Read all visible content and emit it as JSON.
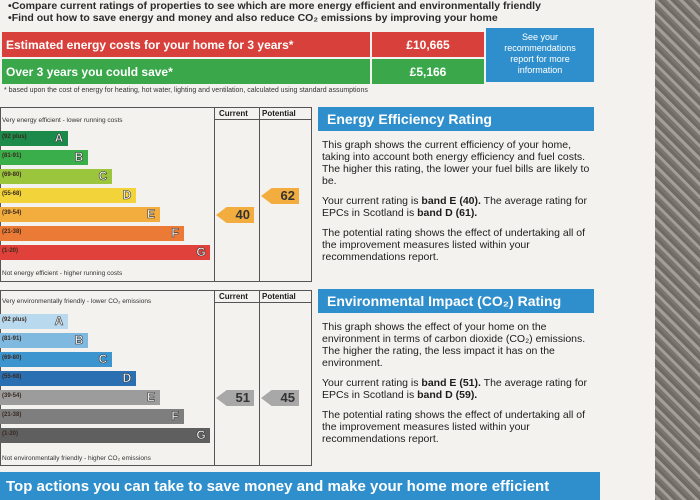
{
  "intro": {
    "line1": "Compare current ratings of properties to see which are more energy efficient and environmentally friendly",
    "line2": "Find out how to save energy and money and also reduce CO₂ emissions by improving your home"
  },
  "costs": {
    "estimated_label": "Estimated energy costs for your home for 3 years*",
    "estimated_value": "£10,665",
    "save_label": "Over 3 years you could save*",
    "save_value": "£5,166",
    "see_box": "See your recommendations report for more information",
    "basis": "* based upon the cost of energy for heating, hot water, lighting and ventilation, calculated using standard assumptions"
  },
  "eer_graph": {
    "top_text": "Very energy efficient - lower running costs",
    "bottom_text": "Not energy efficient - higher running costs",
    "col_current": "Current",
    "col_potential": "Potential",
    "current": "40",
    "potential": "62",
    "current_value": 40,
    "potential_value": 62,
    "bands": [
      {
        "range": "(92 plus)",
        "letter": "A",
        "color": "#1c8a4a"
      },
      {
        "range": "(81-91)",
        "letter": "B",
        "color": "#3aae4a"
      },
      {
        "range": "(69-80)",
        "letter": "C",
        "color": "#9bc53d"
      },
      {
        "range": "(55-68)",
        "letter": "D",
        "color": "#f2d43a"
      },
      {
        "range": "(39-54)",
        "letter": "E",
        "color": "#f3ad3e"
      },
      {
        "range": "(21-38)",
        "letter": "F",
        "color": "#ec7a37"
      },
      {
        "range": "(1-20)",
        "letter": "G",
        "color": "#e0413a"
      }
    ]
  },
  "eir_graph": {
    "top_text": "Very environmentally friendly - lower CO₂ emissions",
    "bottom_text": "Not environmentally friendly - higher CO₂ emissions",
    "col_current": "Current",
    "col_potential": "Potential",
    "current": "51",
    "potential": "45",
    "current_value": 51,
    "potential_value": 45,
    "bands": [
      {
        "range": "(92 plus)",
        "letter": "A",
        "color": "#b9d9ef"
      },
      {
        "range": "(81-91)",
        "letter": "B",
        "color": "#7fb9e0"
      },
      {
        "range": "(69-80)",
        "letter": "C",
        "color": "#3d95cf"
      },
      {
        "range": "(55-68)",
        "letter": "D",
        "color": "#2a6fb1"
      },
      {
        "range": "(39-54)",
        "letter": "E",
        "color": "#9c9c9c"
      },
      {
        "range": "(21-38)",
        "letter": "F",
        "color": "#7e7e7e"
      },
      {
        "range": "(1-20)",
        "letter": "G",
        "color": "#5f5f5f"
      }
    ]
  },
  "eer_panel": {
    "heading": "Energy Efficiency Rating",
    "p1": "This graph shows the current efficiency of your home, taking into account both energy efficiency and fuel costs. The higher this rating, the lower your fuel bills are likely to be.",
    "p2_a": "Your current rating is ",
    "p2_b": "band E (40).",
    "p2_c": " The average rating for EPCs in Scotland is ",
    "p2_d": "band D (61).",
    "p3": "The potential rating shows the effect of undertaking all of the improvement measures listed within your recommendations report."
  },
  "eir_panel": {
    "heading": "Environmental Impact (CO₂) Rating",
    "p1": "This graph shows the effect of your home on the environment in terms of carbon dioxide (CO₂) emissions. The higher the rating, the less impact it has on the environment.",
    "p2_a": "Your current rating is ",
    "p2_b": "band E (51).",
    "p2_c": " The average rating for EPCs in Scotland is ",
    "p2_d": "band D (59).",
    "p3": "The potential rating shows the effect of undertaking all of the improvement measures listed within your recommendations report."
  },
  "bottom_heading": "Top actions you can take to save money and make your home more efficient",
  "colors": {
    "accent_blue": "#2f8fcc",
    "cost_red": "#d8413b",
    "save_green": "#3aa84a",
    "marker_orange": "#f3ad3e",
    "marker_grey": "#a8a8a8"
  }
}
